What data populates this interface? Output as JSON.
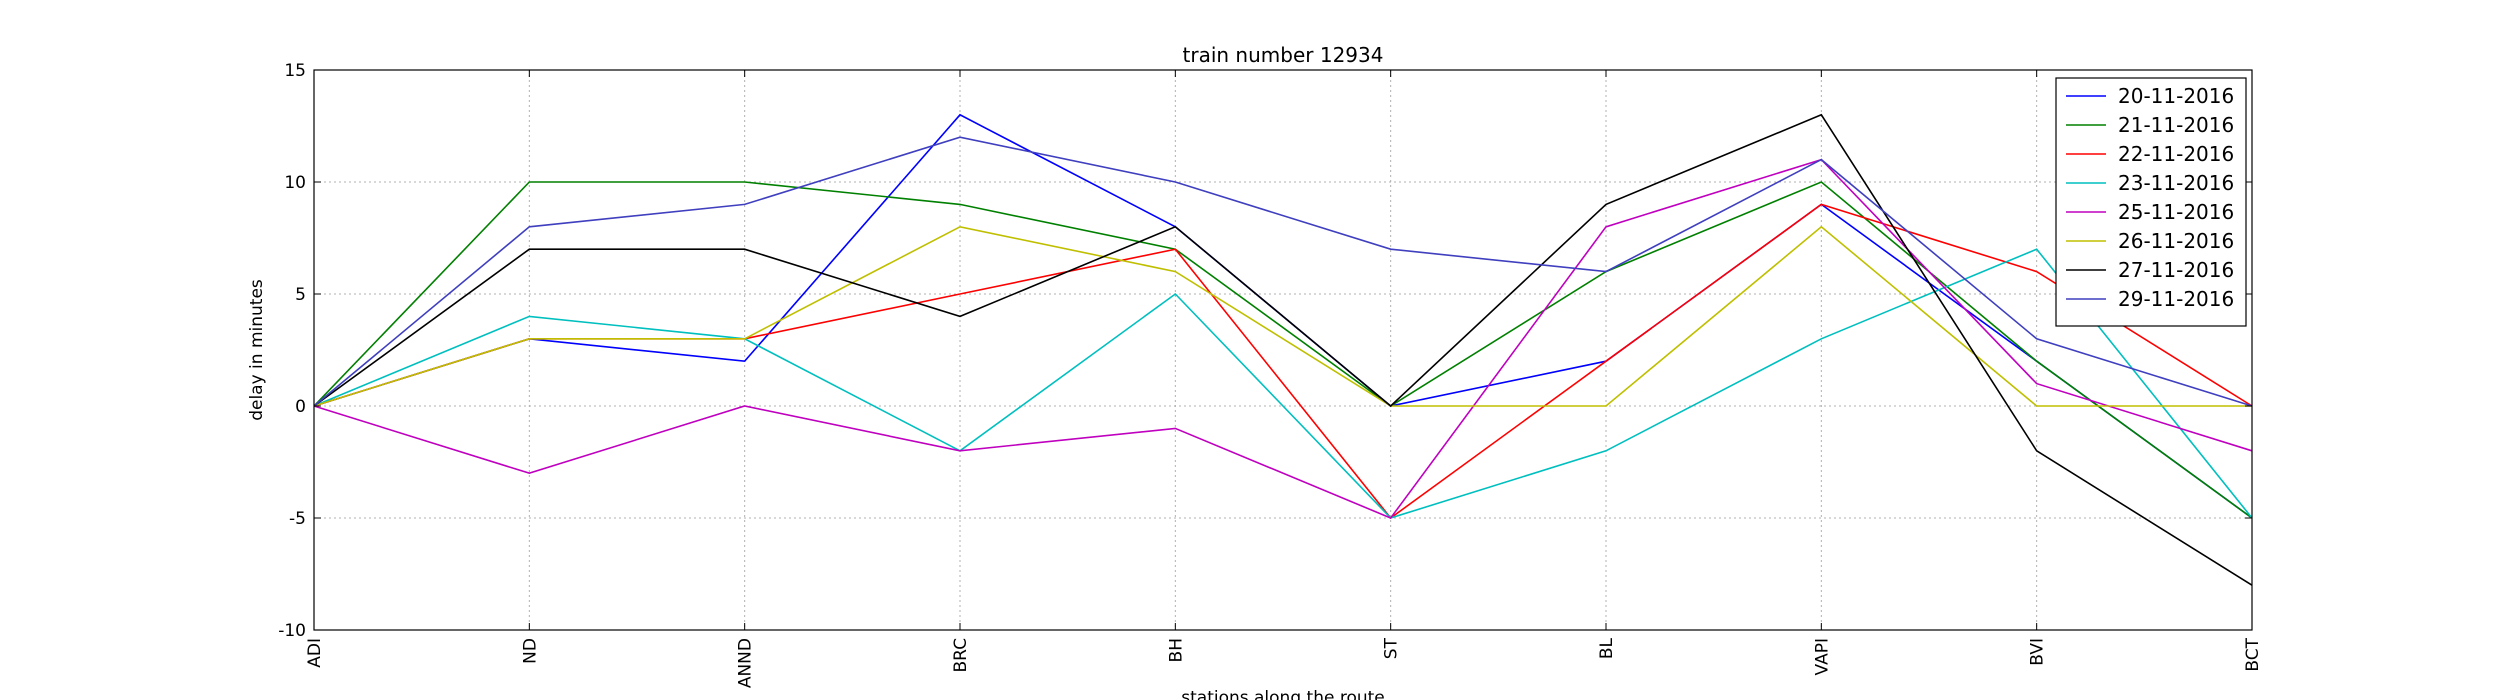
{
  "chart_data": {
    "type": "line",
    "title": "train number 12934",
    "xlabel": "stations along the route",
    "ylabel": "delay in minutes",
    "categories": [
      "ADI",
      "ND",
      "ANND",
      "BRC",
      "BH",
      "ST",
      "BL",
      "VAPI",
      "BVI",
      "BCT"
    ],
    "ylim": [
      -10,
      15
    ],
    "yticks": [
      -10,
      -5,
      0,
      5,
      10,
      15
    ],
    "grid": true,
    "legend_position": "top-right",
    "series": [
      {
        "name": "20-11-2016",
        "color": "#0000ff",
        "values": [
          0,
          3,
          2,
          13,
          8,
          0,
          2,
          9,
          2,
          -5
        ]
      },
      {
        "name": "21-11-2016",
        "color": "#008000",
        "values": [
          0,
          10,
          10,
          9,
          7,
          0,
          6,
          10,
          2,
          -5
        ]
      },
      {
        "name": "22-11-2016",
        "color": "#ff0000",
        "values": [
          0,
          3,
          3,
          5,
          7,
          -5,
          2,
          9,
          6,
          0
        ]
      },
      {
        "name": "23-11-2016",
        "color": "#00bfbf",
        "values": [
          0,
          4,
          3,
          -2,
          5,
          -5,
          -2,
          3,
          7,
          -5
        ]
      },
      {
        "name": "25-11-2016",
        "color": "#bf00bf",
        "values": [
          0,
          -3,
          0,
          -2,
          -1,
          -5,
          8,
          11,
          1,
          -2
        ]
      },
      {
        "name": "26-11-2016",
        "color": "#bfbf00",
        "values": [
          0,
          3,
          3,
          8,
          6,
          0,
          0,
          8,
          0,
          0
        ]
      },
      {
        "name": "27-11-2016",
        "color": "#000000",
        "values": [
          0,
          7,
          7,
          4,
          8,
          0,
          9,
          13,
          -2,
          -8
        ]
      },
      {
        "name": "29-11-2016",
        "color": "#3f3fbf",
        "values": [
          0,
          8,
          9,
          12,
          10,
          7,
          6,
          11,
          3,
          0
        ]
      }
    ]
  }
}
